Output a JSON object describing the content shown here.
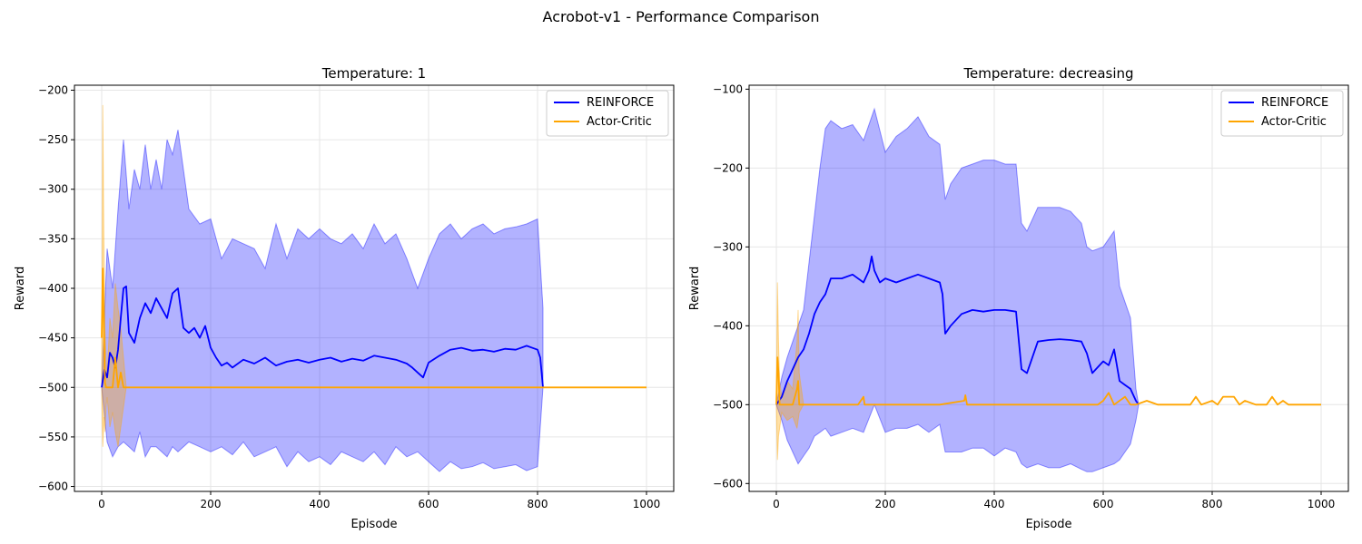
{
  "suptitle": "Acrobot-v1 - Performance Comparison",
  "colors": {
    "reinforce": "#0000ff",
    "reinforce_band": "#0000ff",
    "actor_critic": "#ffa500",
    "grid": "#e6e6e6",
    "axis": "#000000"
  },
  "chart_data": [
    {
      "type": "line",
      "title": "Temperature: 1",
      "xlabel": "Episode",
      "ylabel": "Reward",
      "xlim": [
        -50,
        1050
      ],
      "ylim": [
        -605,
        -195
      ],
      "xticks": [
        0,
        200,
        400,
        600,
        800,
        1000
      ],
      "yticks": [
        -600,
        -550,
        -500,
        -450,
        -400,
        -350,
        -300,
        -250,
        -200
      ],
      "xtick_labels": [
        "0",
        "200",
        "400",
        "600",
        "800",
        "1000"
      ],
      "ytick_labels": [
        "−600",
        "−550",
        "−500",
        "−450",
        "−400",
        "−350",
        "−300",
        "−250",
        "−200"
      ],
      "grid": true,
      "legend_position": "top-right",
      "series": [
        {
          "name": "REINFORCE",
          "color": "#0000ff",
          "x": [
            0,
            5,
            10,
            15,
            20,
            25,
            30,
            35,
            40,
            45,
            50,
            60,
            70,
            80,
            90,
            100,
            110,
            120,
            130,
            140,
            150,
            160,
            170,
            180,
            190,
            200,
            210,
            220,
            230,
            240,
            260,
            280,
            300,
            320,
            340,
            360,
            380,
            400,
            420,
            440,
            460,
            480,
            500,
            520,
            540,
            560,
            570,
            580,
            590,
            600,
            620,
            640,
            660,
            680,
            700,
            720,
            740,
            760,
            780,
            800,
            805,
            810
          ],
          "y": [
            -500,
            -482,
            -490,
            -465,
            -470,
            -480,
            -462,
            -430,
            -400,
            -398,
            -445,
            -455,
            -430,
            -415,
            -425,
            -410,
            -420,
            -430,
            -405,
            -400,
            -440,
            -445,
            -440,
            -450,
            -438,
            -460,
            -470,
            -478,
            -475,
            -480,
            -472,
            -476,
            -470,
            -478,
            -474,
            -472,
            -475,
            -472,
            -470,
            -474,
            -471,
            -473,
            -468,
            -470,
            -472,
            -476,
            -480,
            -485,
            -490,
            -475,
            -468,
            -462,
            -460,
            -463,
            -462,
            -464,
            -461,
            -462,
            -458,
            -462,
            -470,
            -500
          ],
          "band_x": [
            0,
            10,
            20,
            30,
            40,
            50,
            60,
            70,
            80,
            90,
            100,
            110,
            120,
            130,
            140,
            160,
            180,
            200,
            220,
            240,
            260,
            280,
            300,
            320,
            340,
            360,
            380,
            400,
            420,
            440,
            460,
            480,
            500,
            520,
            540,
            560,
            580,
            600,
            620,
            640,
            660,
            680,
            700,
            720,
            740,
            760,
            780,
            800,
            810
          ],
          "band_upper": [
            -500,
            -360,
            -400,
            -320,
            -250,
            -320,
            -280,
            -300,
            -255,
            -300,
            -270,
            -300,
            -250,
            -265,
            -240,
            -320,
            -335,
            -330,
            -370,
            -350,
            -355,
            -360,
            -380,
            -335,
            -370,
            -340,
            -350,
            -340,
            -350,
            -355,
            -345,
            -360,
            -335,
            -355,
            -345,
            -370,
            -400,
            -370,
            -345,
            -335,
            -350,
            -340,
            -335,
            -345,
            -340,
            -338,
            -335,
            -330,
            -420
          ],
          "band_lower": [
            -500,
            -555,
            -570,
            -560,
            -555,
            -560,
            -565,
            -545,
            -570,
            -560,
            -560,
            -565,
            -570,
            -560,
            -565,
            -555,
            -560,
            -565,
            -560,
            -568,
            -555,
            -570,
            -565,
            -560,
            -580,
            -565,
            -575,
            -570,
            -578,
            -565,
            -570,
            -575,
            -565,
            -578,
            -560,
            -570,
            -565,
            -575,
            -585,
            -575,
            -582,
            -580,
            -576,
            -582,
            -580,
            -578,
            -584,
            -580,
            -500
          ]
        },
        {
          "name": "Actor-Critic",
          "color": "#ffa500",
          "x": [
            0,
            2,
            4,
            6,
            8,
            10,
            15,
            20,
            25,
            30,
            35,
            40,
            50,
            100,
            200,
            300,
            400,
            500,
            600,
            700,
            800,
            900,
            1000
          ],
          "y": [
            -450,
            -380,
            -440,
            -495,
            -500,
            -500,
            -500,
            -500,
            -470,
            -500,
            -485,
            -500,
            -500,
            -500,
            -500,
            -500,
            -500,
            -500,
            -500,
            -500,
            -500,
            -500,
            -500
          ],
          "band_x": [
            0,
            2,
            4,
            6,
            8,
            10,
            15,
            20,
            25,
            30,
            35,
            40,
            45
          ],
          "band_upper": [
            -500,
            -215,
            -350,
            -440,
            -470,
            -490,
            -430,
            -450,
            -395,
            -420,
            -440,
            -470,
            -500
          ],
          "band_lower": [
            -500,
            -560,
            -530,
            -545,
            -520,
            -510,
            -540,
            -525,
            -545,
            -560,
            -540,
            -520,
            -500
          ]
        }
      ]
    },
    {
      "type": "line",
      "title": "Temperature: decreasing",
      "xlabel": "Episode",
      "ylabel": "Reward",
      "xlim": [
        -50,
        1050
      ],
      "ylim": [
        -610,
        -95
      ],
      "xticks": [
        0,
        200,
        400,
        600,
        800,
        1000
      ],
      "yticks": [
        -600,
        -500,
        -400,
        -300,
        -200,
        -100
      ],
      "xtick_labels": [
        "0",
        "200",
        "400",
        "600",
        "800",
        "1000"
      ],
      "ytick_labels": [
        "−600",
        "−500",
        "−400",
        "−300",
        "−200",
        "−100"
      ],
      "grid": true,
      "legend_position": "top-right",
      "series": [
        {
          "name": "REINFORCE",
          "color": "#0000ff",
          "x": [
            0,
            10,
            20,
            30,
            40,
            50,
            60,
            70,
            80,
            90,
            100,
            120,
            140,
            160,
            170,
            175,
            180,
            190,
            200,
            220,
            240,
            260,
            280,
            300,
            305,
            310,
            320,
            340,
            360,
            380,
            400,
            420,
            440,
            450,
            460,
            480,
            500,
            520,
            540,
            560,
            570,
            580,
            600,
            610,
            620,
            630,
            640,
            650,
            660,
            665
          ],
          "y": [
            -500,
            -490,
            -470,
            -455,
            -440,
            -430,
            -410,
            -385,
            -370,
            -360,
            -340,
            -340,
            -335,
            -345,
            -330,
            -312,
            -330,
            -345,
            -340,
            -345,
            -340,
            -335,
            -340,
            -345,
            -360,
            -410,
            -400,
            -385,
            -380,
            -382,
            -380,
            -380,
            -382,
            -455,
            -460,
            -420,
            -418,
            -417,
            -418,
            -420,
            -435,
            -460,
            -445,
            -450,
            -430,
            -470,
            -475,
            -480,
            -495,
            -500
          ],
          "band_x": [
            0,
            10,
            20,
            30,
            40,
            50,
            60,
            70,
            80,
            90,
            100,
            120,
            140,
            160,
            180,
            200,
            220,
            240,
            260,
            280,
            300,
            310,
            320,
            340,
            360,
            380,
            400,
            420,
            440,
            450,
            460,
            480,
            500,
            520,
            540,
            560,
            570,
            580,
            600,
            620,
            630,
            640,
            650,
            660,
            665
          ],
          "band_upper": [
            -500,
            -465,
            -440,
            -420,
            -400,
            -380,
            -320,
            -260,
            -200,
            -150,
            -140,
            -150,
            -145,
            -165,
            -125,
            -180,
            -160,
            -150,
            -135,
            -160,
            -170,
            -240,
            -220,
            -200,
            -195,
            -190,
            -190,
            -195,
            -195,
            -270,
            -280,
            -250,
            -250,
            -250,
            -255,
            -270,
            -300,
            -305,
            -300,
            -280,
            -350,
            -370,
            -390,
            -480,
            -500
          ],
          "band_lower": [
            -500,
            -520,
            -545,
            -560,
            -575,
            -565,
            -555,
            -540,
            -535,
            -530,
            -540,
            -535,
            -530,
            -535,
            -500,
            -535,
            -530,
            -530,
            -525,
            -535,
            -525,
            -560,
            -560,
            -560,
            -555,
            -555,
            -565,
            -555,
            -560,
            -575,
            -580,
            -575,
            -580,
            -580,
            -575,
            -582,
            -585,
            -585,
            -580,
            -575,
            -570,
            -560,
            -550,
            -520,
            -500
          ]
        },
        {
          "name": "Actor-Critic",
          "color": "#ffa500",
          "x": [
            0,
            2,
            4,
            6,
            10,
            20,
            30,
            38,
            40,
            42,
            50,
            100,
            150,
            160,
            162,
            170,
            200,
            300,
            345,
            347,
            350,
            400,
            500,
            590,
            600,
            610,
            620,
            640,
            650,
            660,
            680,
            700,
            720,
            760,
            770,
            780,
            800,
            810,
            820,
            840,
            850,
            860,
            880,
            900,
            910,
            920,
            930,
            940,
            1000
          ],
          "y": [
            -500,
            -440,
            -460,
            -500,
            -500,
            -500,
            -500,
            -480,
            -470,
            -500,
            -500,
            -500,
            -500,
            -490,
            -500,
            -500,
            -500,
            -500,
            -495,
            -488,
            -500,
            -500,
            -500,
            -500,
            -495,
            -485,
            -500,
            -490,
            -500,
            -500,
            -495,
            -500,
            -500,
            -500,
            -490,
            -500,
            -495,
            -500,
            -490,
            -490,
            -500,
            -495,
            -500,
            -500,
            -490,
            -500,
            -495,
            -500,
            -500
          ],
          "band_x": [
            0,
            2,
            4,
            6,
            8,
            10,
            20,
            30,
            38,
            40,
            42,
            50
          ],
          "band_upper": [
            -500,
            -345,
            -420,
            -470,
            -480,
            -490,
            -470,
            -480,
            -420,
            -380,
            -460,
            -500
          ],
          "band_lower": [
            -500,
            -570,
            -540,
            -530,
            -520,
            -510,
            -520,
            -515,
            -530,
            -520,
            -510,
            -500
          ]
        }
      ]
    }
  ]
}
